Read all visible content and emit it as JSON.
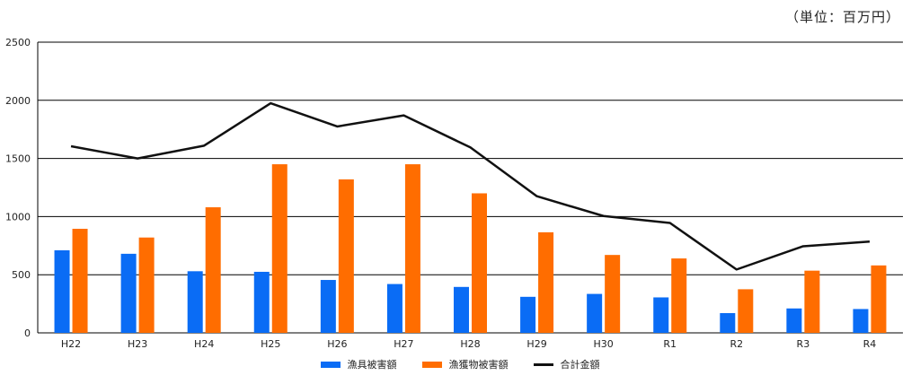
{
  "unit_label": "（単位：百万円）",
  "chart_data": {
    "type": "bar",
    "categories": [
      "H22",
      "H23",
      "H24",
      "H25",
      "H26",
      "H27",
      "H28",
      "H29",
      "H30",
      "R1",
      "R2",
      "R3",
      "R4"
    ],
    "ylim": [
      0,
      2500
    ],
    "yticks": [
      0,
      500,
      1000,
      1500,
      2000,
      2500
    ],
    "grid": true,
    "legend_position": "bottom",
    "series": [
      {
        "name": "漁具被害額",
        "type": "bar",
        "color": "#0a6cf5",
        "values": [
          710,
          680,
          530,
          525,
          455,
          420,
          395,
          310,
          335,
          305,
          170,
          210,
          205
        ]
      },
      {
        "name": "漁獲物被害額",
        "type": "bar",
        "color": "#ff6d00",
        "values": [
          895,
          820,
          1080,
          1450,
          1320,
          1450,
          1200,
          865,
          670,
          640,
          375,
          535,
          580
        ]
      },
      {
        "name": "合計金額",
        "type": "line",
        "color": "#111111",
        "values": [
          1605,
          1500,
          1610,
          1975,
          1775,
          1870,
          1595,
          1175,
          1005,
          945,
          545,
          745,
          785
        ]
      }
    ]
  }
}
